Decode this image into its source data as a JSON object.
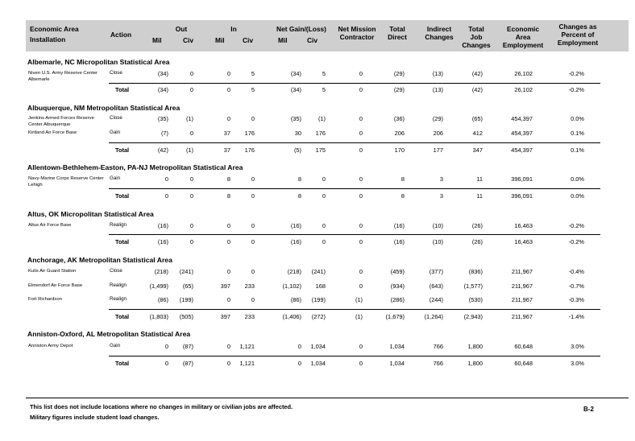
{
  "header": {
    "economic_area": "Economic Area",
    "installation": "Installation",
    "action": "Action",
    "out": "Out",
    "in": "In",
    "net_gain_loss": "Net Gain/(Loss)",
    "mil": "Mil",
    "civ": "Civ",
    "net_mission_contractor": [
      "Net Mission",
      "Contractor"
    ],
    "total_direct": [
      "Total",
      "Direct"
    ],
    "indirect_changes": [
      "Indirect",
      "Changes"
    ],
    "total_job_changes": [
      "Total",
      "Job",
      "Changes"
    ],
    "economic_area_employment": [
      "Economic",
      "Area",
      "Employment"
    ],
    "changes_percent": [
      "Changes as",
      "Percent of",
      "Employment"
    ]
  },
  "sections": [
    {
      "title": "Albemarle, NC Micropolitan Statistical Area",
      "rows": [
        {
          "installation": "Niven U.S. Army Reserve Center Albemarle",
          "action": "Close",
          "values": [
            "(34)",
            "0",
            "0",
            "5",
            "(34)",
            "5",
            "0",
            "(29)",
            "(13)",
            "(42)",
            "26,102",
            "-0.2%"
          ]
        }
      ],
      "total": {
        "label": "Total",
        "values": [
          "(34)",
          "0",
          "0",
          "5",
          "(34)",
          "5",
          "0",
          "(29)",
          "(13)",
          "(42)",
          "26,102",
          "-0.2%"
        ]
      }
    },
    {
      "title": "Albuquerque, NM Metropolitan Statistical Area",
      "rows": [
        {
          "installation": "Jenkins Armed Forces Reserve Center Albuquerque",
          "action": "Close",
          "values": [
            "(35)",
            "(1)",
            "0",
            "0",
            "(35)",
            "(1)",
            "0",
            "(36)",
            "(29)",
            "(65)",
            "454,397",
            "0.0%"
          ]
        },
        {
          "installation": "Kirtland Air Force Base",
          "action": "Gain",
          "values": [
            "(7)",
            "0",
            "37",
            "176",
            "30",
            "176",
            "0",
            "206",
            "206",
            "412",
            "454,397",
            "0.1%"
          ]
        }
      ],
      "total": {
        "label": "Total",
        "values": [
          "(42)",
          "(1)",
          "37",
          "176",
          "(5)",
          "175",
          "0",
          "170",
          "177",
          "347",
          "454,397",
          "0.1%"
        ]
      }
    },
    {
      "title": "Allentown-Bethlehem-Easton, PA-NJ Metropolitan Statistical Area",
      "rows": [
        {
          "installation": "Navy-Marine Corps Reserve Center Lehigh",
          "action": "Gain",
          "values": [
            "0",
            "0",
            "8",
            "0",
            "8",
            "0",
            "0",
            "8",
            "3",
            "11",
            "396,091",
            "0.0%"
          ]
        }
      ],
      "total": {
        "label": "Total",
        "values": [
          "0",
          "0",
          "8",
          "0",
          "8",
          "0",
          "0",
          "8",
          "3",
          "11",
          "396,091",
          "0.0%"
        ]
      }
    },
    {
      "title": "Altus, OK Micropolitan Statistical Area",
      "rows": [
        {
          "installation": "Altus Air Force Base",
          "action": "Realign",
          "values": [
            "(16)",
            "0",
            "0",
            "0",
            "(16)",
            "0",
            "0",
            "(16)",
            "(10)",
            "(26)",
            "16,463",
            "-0.2%"
          ]
        }
      ],
      "total": {
        "label": "Total",
        "values": [
          "(16)",
          "0",
          "0",
          "0",
          "(16)",
          "0",
          "0",
          "(16)",
          "(10)",
          "(26)",
          "16,463",
          "-0.2%"
        ]
      }
    },
    {
      "title": "Anchorage, AK Metropolitan Statistical Area",
      "rows": [
        {
          "installation": "Kulis Air Guard Station",
          "action": "Close",
          "values": [
            "(218)",
            "(241)",
            "0",
            "0",
            "(218)",
            "(241)",
            "0",
            "(459)",
            "(377)",
            "(836)",
            "211,967",
            "-0.4%"
          ]
        },
        {
          "installation": "Elmendorf Air Force Base",
          "action": "Realign",
          "values": [
            "(1,499)",
            "(65)",
            "397",
            "233",
            "(1,102)",
            "168",
            "0",
            "(934)",
            "(643)",
            "(1,577)",
            "211,967",
            "-0.7%"
          ]
        },
        {
          "installation": "Fort Richardson",
          "action": "Realign",
          "values": [
            "(86)",
            "(199)",
            "0",
            "0",
            "(86)",
            "(199)",
            "(1)",
            "(286)",
            "(244)",
            "(530)",
            "211,967",
            "-0.3%"
          ]
        }
      ],
      "total": {
        "label": "Total",
        "values": [
          "(1,803)",
          "(505)",
          "397",
          "233",
          "(1,406)",
          "(272)",
          "(1)",
          "(1,679)",
          "(1,264)",
          "(2,943)",
          "211,967",
          "-1.4%"
        ]
      }
    },
    {
      "title": "Anniston-Oxford, AL Metropolitan Statistical Area",
      "rows": [
        {
          "installation": "Anniston Army Depot",
          "action": "Gain",
          "values": [
            "0",
            "(87)",
            "0",
            "1,121",
            "0",
            "1,034",
            "0",
            "1,034",
            "766",
            "1,800",
            "60,648",
            "3.0%"
          ]
        }
      ],
      "total": {
        "label": "Total",
        "values": [
          "0",
          "(87)",
          "0",
          "1,121",
          "0",
          "1,034",
          "0",
          "1,034",
          "766",
          "1,800",
          "60,648",
          "3.0%"
        ]
      }
    }
  ],
  "footer": {
    "note1": "This list does not include locations where no changes in military or civilian jobs are affected.",
    "note2": "Military figures include student load changes.",
    "page": "B-2"
  }
}
